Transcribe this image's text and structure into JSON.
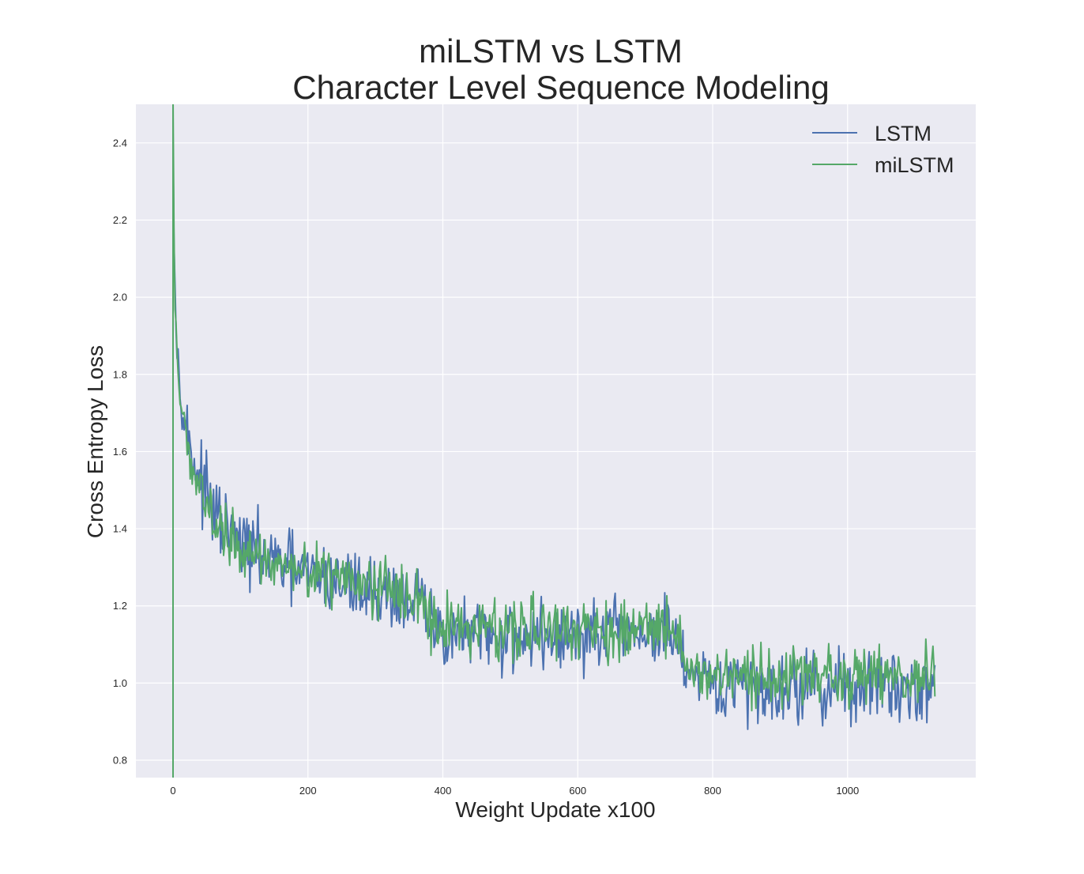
{
  "chart_data": {
    "type": "line",
    "title": "miLSTM vs LSTM",
    "subtitle": "Character Level Sequence Modeling",
    "xlabel": "Weight Update x100",
    "ylabel": "Cross Entropy Loss",
    "xlim": [
      -55,
      1190
    ],
    "ylim": [
      0.755,
      2.5
    ],
    "xticks": [
      0,
      200,
      400,
      600,
      800,
      1000
    ],
    "xtick_labels": [
      "0",
      "200",
      "400",
      "600",
      "800",
      "1000"
    ],
    "yticks": [
      0.8,
      1.0,
      1.2,
      1.4,
      1.6,
      1.8,
      2.0,
      2.2,
      2.4
    ],
    "ytick_labels": [
      "0.8",
      "1.0",
      "1.2",
      "1.4",
      "1.6",
      "1.8",
      "2.0",
      "2.2",
      "2.4"
    ],
    "grid": true,
    "legend_position": "top-right",
    "background": "#EAEAF2",
    "series": [
      {
        "name": "LSTM",
        "color": "#4C72B0",
        "x_range": [
          0,
          1130
        ],
        "points": [
          [
            0,
            2.45
          ],
          [
            2,
            2.1
          ],
          [
            5,
            1.9
          ],
          [
            10,
            1.78
          ],
          [
            15,
            1.7
          ],
          [
            20,
            1.65
          ],
          [
            30,
            1.58
          ],
          [
            40,
            1.53
          ],
          [
            50,
            1.48
          ],
          [
            60,
            1.44
          ],
          [
            80,
            1.39
          ],
          [
            100,
            1.36
          ],
          [
            120,
            1.34
          ],
          [
            150,
            1.31
          ],
          [
            200,
            1.28
          ],
          [
            250,
            1.26
          ],
          [
            300,
            1.24
          ],
          [
            350,
            1.22
          ],
          [
            370,
            1.21
          ],
          [
            380,
            1.14
          ],
          [
            450,
            1.12
          ],
          [
            500,
            1.12
          ],
          [
            600,
            1.12
          ],
          [
            700,
            1.13
          ],
          [
            750,
            1.12
          ],
          [
            760,
            1.0
          ],
          [
            800,
            0.99
          ],
          [
            900,
            0.99
          ],
          [
            1000,
            0.99
          ],
          [
            1130,
            0.99
          ]
        ],
        "noise_amplitude": 0.07
      },
      {
        "name": "miLSTM",
        "color": "#55A868",
        "x_range": [
          0,
          1130
        ],
        "points": [
          [
            0,
            2.5
          ],
          [
            2,
            2.05
          ],
          [
            5,
            1.88
          ],
          [
            10,
            1.74
          ],
          [
            15,
            1.67
          ],
          [
            20,
            1.63
          ],
          [
            30,
            1.56
          ],
          [
            40,
            1.51
          ],
          [
            50,
            1.46
          ],
          [
            60,
            1.42
          ],
          [
            80,
            1.38
          ],
          [
            100,
            1.35
          ],
          [
            120,
            1.33
          ],
          [
            150,
            1.31
          ],
          [
            200,
            1.28
          ],
          [
            250,
            1.27
          ],
          [
            300,
            1.25
          ],
          [
            350,
            1.23
          ],
          [
            370,
            1.22
          ],
          [
            380,
            1.15
          ],
          [
            450,
            1.14
          ],
          [
            500,
            1.14
          ],
          [
            600,
            1.14
          ],
          [
            700,
            1.14
          ],
          [
            750,
            1.14
          ],
          [
            760,
            1.02
          ],
          [
            800,
            1.01
          ],
          [
            900,
            1.01
          ],
          [
            1000,
            1.02
          ],
          [
            1130,
            1.02
          ]
        ],
        "noise_amplitude": 0.06,
        "initial_spike": [
          0,
          0.755
        ]
      }
    ]
  }
}
